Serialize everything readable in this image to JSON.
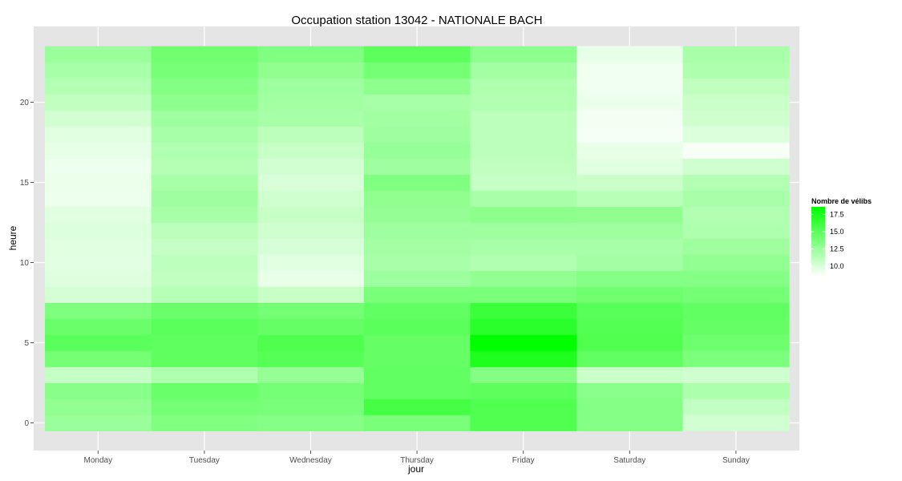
{
  "chart_data": {
    "type": "heatmap",
    "title": "Occupation station 13042 - NATIONALE BACH",
    "xlabel": "jour",
    "ylabel": "heure",
    "categories": [
      "Monday",
      "Tuesday",
      "Wednesday",
      "Thursday",
      "Friday",
      "Saturday",
      "Sunday"
    ],
    "hours": [
      0,
      1,
      2,
      3,
      4,
      5,
      6,
      7,
      8,
      9,
      10,
      11,
      12,
      13,
      14,
      15,
      16,
      17,
      18,
      19,
      20,
      21,
      22,
      23
    ],
    "y_ticks": [
      0,
      5,
      10,
      15,
      20
    ],
    "ylim": [
      -0.6,
      23.6
    ],
    "legend": {
      "title": "Nombre de vélibs",
      "ticks": [
        10.0,
        12.5,
        15.0,
        17.5
      ],
      "tick_labels": [
        "10.0",
        "12.5",
        "15.0",
        "17.5"
      ],
      "min": 8.5,
      "max": 18.6,
      "low_color": "#ffffff",
      "high_color": "#00ff00",
      "placement": "right"
    },
    "grid": true,
    "panel_background": "#e5e5e5",
    "values": [
      [
        12.5,
        12.8,
        13.2,
        10.8,
        14.0,
        15.0,
        14.4,
        13.6,
        10.2,
        9.8,
        9.6,
        9.7,
        9.9,
        9.7,
        9.2,
        9.3,
        9.2,
        9.5,
        9.7,
        10.3,
        11.0,
        11.5,
        12.0,
        12.5
      ],
      [
        13.5,
        14.0,
        14.5,
        11.7,
        14.8,
        14.8,
        15.0,
        14.4,
        11.4,
        11.0,
        11.1,
        10.8,
        11.2,
        12.0,
        12.3,
        12.0,
        11.5,
        11.6,
        12.0,
        12.4,
        13.0,
        13.4,
        13.9,
        14.2
      ],
      [
        13.3,
        13.8,
        14.0,
        12.7,
        15.2,
        15.5,
        14.6,
        14.0,
        10.7,
        9.4,
        9.7,
        10.1,
        10.4,
        10.7,
        10.4,
        10.0,
        10.3,
        10.7,
        11.2,
        12.0,
        12.2,
        12.4,
        12.9,
        13.5
      ],
      [
        13.8,
        15.9,
        14.7,
        14.7,
        14.6,
        14.6,
        15.0,
        14.7,
        13.8,
        12.4,
        11.9,
        12.1,
        12.4,
        12.7,
        12.9,
        13.5,
        12.4,
        12.6,
        12.4,
        12.2,
        12.0,
        13.0,
        14.0,
        14.9
      ],
      [
        15.4,
        15.4,
        14.9,
        13.4,
        17.4,
        18.6,
        16.9,
        16.3,
        13.8,
        12.8,
        11.6,
        12.0,
        12.4,
        13.0,
        11.9,
        10.8,
        11.0,
        11.2,
        11.2,
        11.2,
        11.6,
        11.7,
        12.2,
        13.0
      ],
      [
        13.3,
        13.3,
        13.1,
        10.6,
        14.7,
        15.4,
        15.3,
        15.1,
        14.2,
        13.3,
        12.1,
        12.0,
        12.4,
        12.9,
        11.3,
        10.6,
        9.7,
        9.4,
        8.9,
        9.0,
        9.3,
        9.1,
        9.1,
        9.4
      ],
      [
        10.3,
        10.9,
        11.8,
        10.4,
        13.7,
        14.3,
        14.6,
        14.7,
        14.0,
        13.3,
        12.8,
        12.3,
        11.7,
        11.6,
        11.9,
        11.5,
        10.4,
        8.8,
        9.9,
        10.4,
        10.6,
        11.0,
        11.7,
        11.9
      ]
    ]
  }
}
